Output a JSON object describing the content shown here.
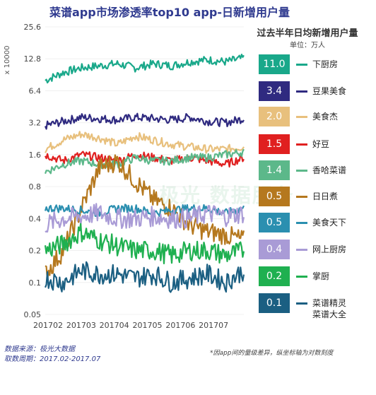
{
  "title": "菜谱app市场渗透率top10 app-日新增用户量",
  "legend_title": "过去半年日均新增用户量",
  "legend_unit": "单位：万人",
  "source_text": "数据来源：极光大数据",
  "period_text": "取数周期：2017.02-2017.07",
  "footnote": "*因app间的量级差异，纵坐标轴为对数刻度",
  "watermark": "极光 数据服务",
  "chart_data": {
    "type": "line",
    "title": "菜谱app市场渗透率top10 app-日新增用户量",
    "ylabel": "x 10000",
    "yscale": "log",
    "ylim": [
      0.05,
      25.6
    ],
    "yticks": [
      "25.6",
      "12.8",
      "6.4",
      "3.2",
      "1.6",
      "0.8",
      "0.4",
      "0.2",
      "0.1",
      "0.05"
    ],
    "ytick_values": [
      25.6,
      12.8,
      6.4,
      3.2,
      1.6,
      0.8,
      0.4,
      0.2,
      0.1,
      0.05
    ],
    "xticks": [
      "201702",
      "201703",
      "201704",
      "201705",
      "201706",
      "201707"
    ],
    "x_range": [
      "2017-02-01",
      "2017-07-31"
    ],
    "legend_position": "right",
    "series": [
      {
        "name": "下厨房",
        "avg": "11.0",
        "color": "#19a88a",
        "values": [
          8.0,
          9.5,
          10.5,
          11.0,
          11.5,
          10.5,
          11.5,
          11.0,
          12.0,
          12.5,
          12.0,
          13.0
        ]
      },
      {
        "name": "豆果美食",
        "avg": "3.4",
        "color": "#2f2a80",
        "values": [
          3.0,
          3.3,
          3.6,
          3.5,
          3.4,
          3.6,
          3.5,
          3.4,
          3.6,
          3.3,
          3.2,
          3.5
        ]
      },
      {
        "name": "美食杰",
        "avg": "2.0",
        "color": "#e8c07d",
        "values": [
          1.8,
          2.2,
          2.5,
          2.3,
          2.0,
          2.4,
          2.2,
          2.0,
          1.9,
          1.8,
          1.8,
          1.9
        ]
      },
      {
        "name": "好豆",
        "avg": "1.5",
        "color": "#e02020",
        "values": [
          1.6,
          1.4,
          1.6,
          1.5,
          1.4,
          1.6,
          1.5,
          1.4,
          1.5,
          1.4,
          1.3,
          1.5
        ]
      },
      {
        "name": "香哈菜谱",
        "avg": "1.4",
        "color": "#5cb88a",
        "values": [
          1.1,
          1.3,
          1.4,
          1.3,
          1.3,
          1.5,
          1.4,
          1.4,
          1.5,
          1.5,
          1.6,
          1.7
        ]
      },
      {
        "name": "日日煮",
        "avg": "0.5",
        "color": "#b5781e",
        "values": [
          0.12,
          0.2,
          0.5,
          1.2,
          1.4,
          0.9,
          0.6,
          0.5,
          0.35,
          0.3,
          0.28,
          0.25
        ]
      },
      {
        "name": "美食天下",
        "avg": "0.5",
        "color": "#2b8fb0",
        "values": [
          0.5,
          0.5,
          0.48,
          0.45,
          0.5,
          0.5,
          0.45,
          0.48,
          0.5,
          0.5,
          0.45,
          0.5
        ]
      },
      {
        "name": "网上厨房",
        "avg": "0.4",
        "color": "#a99bd6",
        "values": [
          0.35,
          0.4,
          0.42,
          0.45,
          0.4,
          0.4,
          0.42,
          0.4,
          0.4,
          0.45,
          0.42,
          0.45
        ]
      },
      {
        "name": "掌厨",
        "avg": "0.2",
        "color": "#1fb050",
        "values": [
          0.2,
          0.23,
          0.3,
          0.25,
          0.22,
          0.2,
          0.2,
          0.18,
          0.2,
          0.2,
          0.18,
          0.2
        ]
      },
      {
        "name": "菜谱精灵",
        "avg": "0.1",
        "color": "#1b5f82",
        "values": [
          0.11,
          0.1,
          0.13,
          0.12,
          0.12,
          0.11,
          0.12,
          0.1,
          0.11,
          0.12,
          0.1,
          0.13
        ]
      }
    ],
    "extra_legend_label": "菜谱大全"
  }
}
